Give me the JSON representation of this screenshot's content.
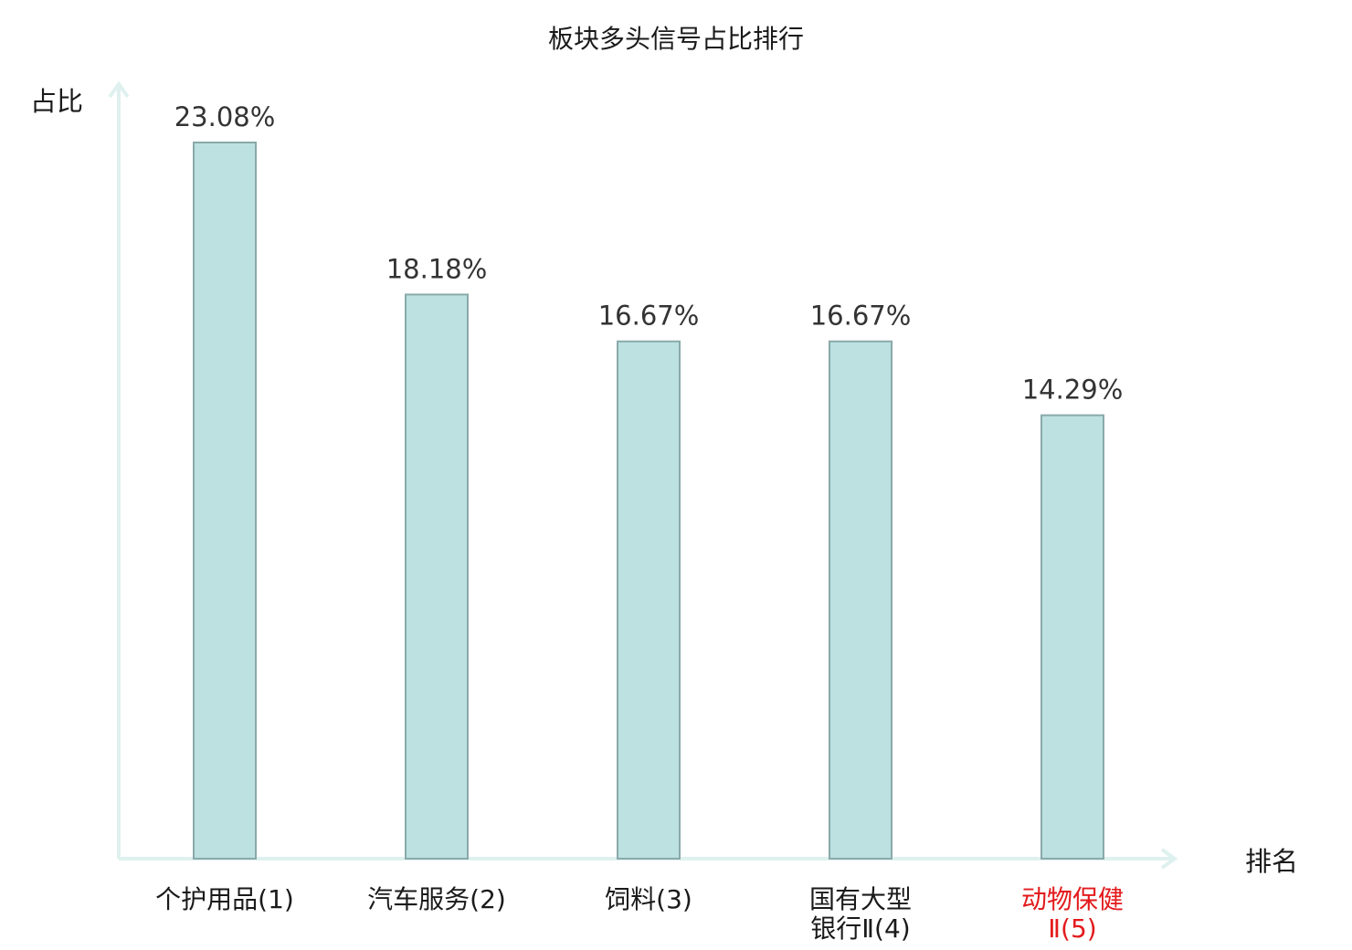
{
  "chart_data": {
    "type": "bar",
    "title": "板块多头信号占比排行",
    "ylabel": "占比",
    "xlabel": "排名",
    "ylim": [
      0,
      25
    ],
    "grid": false,
    "categories": [
      {
        "lines": [
          "个护用品",
          "(1)"
        ],
        "highlight": false
      },
      {
        "lines": [
          "汽车服务",
          "(2)"
        ],
        "highlight": false
      },
      {
        "lines": [
          "饲料",
          "(3)"
        ],
        "highlight": false
      },
      {
        "lines": [
          "国有大型",
          "银行Ⅱ(4)"
        ],
        "highlight": false
      },
      {
        "lines": [
          "动物保健",
          "Ⅱ(5)"
        ],
        "highlight": true
      }
    ],
    "values": [
      23.08,
      18.18,
      16.67,
      16.67,
      14.29
    ],
    "value_labels": [
      "23.08%",
      "18.18%",
      "16.67%",
      "16.67%",
      "14.29%"
    ]
  },
  "colors": {
    "bar_fill": "#bde0e1",
    "bar_stroke": "#8aa9aa",
    "axis": "#dff1ef",
    "text": "#1a1a1a",
    "highlight": "#e31a1c"
  }
}
